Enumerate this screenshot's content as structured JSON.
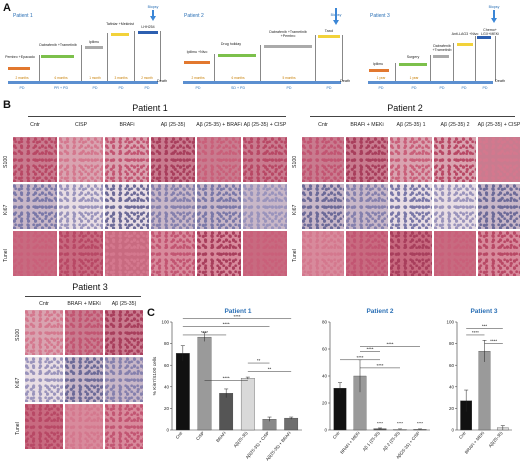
{
  "panels": {
    "a": "A",
    "b": "B",
    "c": "C"
  },
  "timelines": [
    {
      "title": "Patient 1",
      "treatments": [
        "Pembro +Epacado",
        "Dabrafenib +Trametinib",
        "Ipilimu",
        "Tafinlar +Mekinist",
        "LHH254"
      ],
      "durations": [
        "2 months",
        "6 months",
        "1 month",
        "3 months",
        "2 month"
      ],
      "responses": [
        "PD",
        "PR + PD",
        "PD",
        "PD",
        "PD"
      ],
      "death": "Death",
      "biopsy": "Biopsy"
    },
    {
      "title": "Patient 2",
      "treatments": [
        "Ipilimu +Nivo",
        "Drug holiday",
        "Dabrafenib +Trametinib +Pembro",
        "Taxol"
      ],
      "durations": [
        "2 months",
        "6 months",
        "5 months",
        ""
      ],
      "responses": [
        "PD",
        "SD + PD",
        "PD",
        "PD"
      ],
      "death": "Death",
      "biopsy": "Biopsy"
    },
    {
      "title": "Patient 3",
      "treatments": [
        "Ipilimu",
        "Surgery",
        "Dabrafenib +Trametinib",
        "Anti-LAG3 +Nivo",
        "Chemo+ LGX+MEKi"
      ],
      "durations": [
        "1 year",
        "1 year",
        "",
        "",
        ""
      ],
      "responses": [
        "PD",
        "PD",
        "PD",
        "PD",
        "PD"
      ],
      "death": "Death",
      "biopsy": "Biopsy"
    }
  ],
  "histology": {
    "p1": {
      "title": "Patient 1",
      "columns": [
        "Cntr",
        "CISP",
        "BRAFi",
        "Aβ (25-35)",
        "Aβ (25-35) + BRAFi",
        "Aβ (25-35) + CISP"
      ]
    },
    "p2": {
      "title": "Patient 2",
      "columns": [
        "Cntr",
        "BRAFi + MEKi",
        "Aβ (25-35) 1",
        "Aβ (25-35) 2",
        "Aβ (25-35) + CISP"
      ]
    },
    "p3": {
      "title": "",
      "columns": [
        "Cntr",
        "BRAFi + MEKi",
        "Aβ (25-35)"
      ]
    },
    "rows": [
      "S100",
      "Ki67",
      "Tunel"
    ],
    "p3_label": "Patient 3"
  },
  "chart_data": [
    {
      "type": "bar",
      "title": "Patient 1",
      "ylabel": "% Ki67/S100 cells",
      "ylim": [
        0,
        100
      ],
      "yticks": [
        0,
        20,
        40,
        60,
        80,
        100
      ],
      "categories": [
        "Cntr",
        "CISP",
        "BRAFi",
        "Aβ(25-35)",
        "Aβ(25-35) + CISP",
        "Aβ(25-35) + BRAFi"
      ],
      "values": [
        71,
        86,
        34,
        48,
        10,
        11
      ],
      "errors": [
        7,
        4,
        4,
        1,
        2,
        1
      ],
      "colors": [
        "#111111",
        "#9a9a9a",
        "#555555",
        "#d9d9d9",
        "#888888",
        "#6e6e6e"
      ],
      "significance": [
        "****",
        "****",
        "****",
        "**",
        "**",
        "****"
      ]
    },
    {
      "type": "bar",
      "title": "Patient 2",
      "ylim": [
        0,
        80
      ],
      "yticks": [
        0,
        20,
        40,
        60,
        80
      ],
      "categories": [
        "Cntr",
        "BRAFi + MEKi",
        "Aβ 1 (25-35)",
        "Aβ 2 (25-35)",
        "Aβ(25-35) + CISP"
      ],
      "values": [
        31,
        40,
        1,
        0.5,
        0.5
      ],
      "errors": [
        4,
        12,
        0.5,
        0.3,
        0.3
      ],
      "colors": [
        "#111111",
        "#9a9a9a",
        "#555555",
        "#d9d9d9",
        "#888888"
      ],
      "significance": [
        "****",
        "****",
        "****",
        "****",
        "****",
        "****"
      ]
    },
    {
      "type": "bar",
      "title": "Patient 3",
      "ylim": [
        0,
        100
      ],
      "yticks": [
        0,
        20,
        40,
        60,
        80,
        100
      ],
      "categories": [
        "Cntr",
        "BRAFi + MEKi",
        "Aβ(25-35)"
      ],
      "values": [
        27,
        73,
        2
      ],
      "errors": [
        10,
        10,
        2
      ],
      "colors": [
        "#111111",
        "#9a9a9a",
        "#d9d9d9"
      ],
      "significance": [
        "***",
        "****",
        "****"
      ]
    }
  ],
  "colors": {
    "accent": "#2a6fb5",
    "axis": "#5b8fd0",
    "stainPink": "#c0506a",
    "stainBlue": "#5a5a90"
  }
}
